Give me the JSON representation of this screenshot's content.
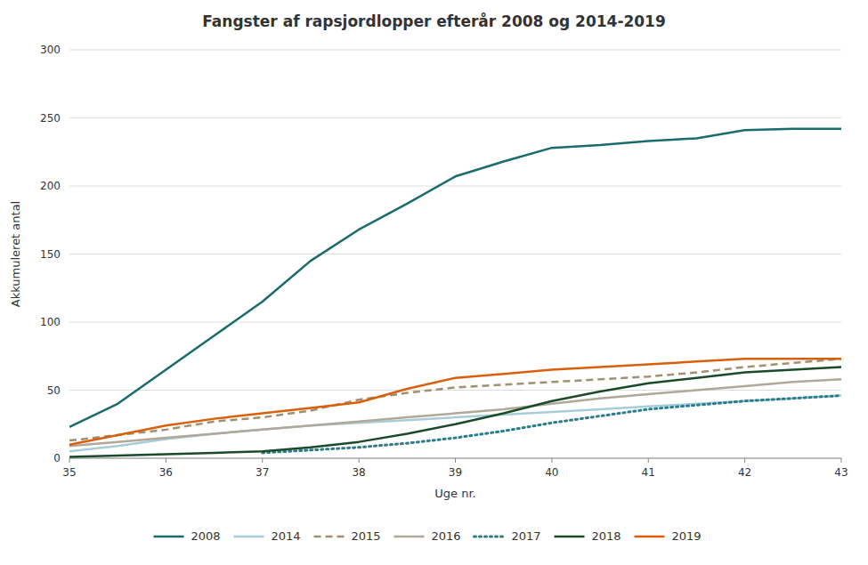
{
  "chart_data": {
    "type": "line",
    "title": "Fangster af rapsjordlopper efterår 2008 og 2014-2019",
    "xlabel": "Uge nr.",
    "ylabel": "Akkumuleret antal",
    "x": [
      35,
      35.5,
      36,
      36.5,
      37,
      37.5,
      38,
      38.5,
      39,
      39.5,
      40,
      40.5,
      41,
      41.5,
      42,
      42.5,
      43
    ],
    "series": [
      {
        "name": "2008",
        "color": "#1a6b6b",
        "line_style": "solid",
        "values": [
          23,
          40,
          65,
          90,
          115,
          145,
          168,
          187,
          207,
          218,
          228,
          230,
          233,
          235,
          241,
          242,
          242
        ]
      },
      {
        "name": "2014",
        "color": "#a8cdd8",
        "line_style": "solid",
        "values": [
          5,
          9,
          14,
          18,
          21,
          24,
          26,
          28,
          30,
          32,
          34,
          36,
          38,
          40,
          42,
          44,
          46
        ]
      },
      {
        "name": "2015",
        "color": "#a09070",
        "line_style": "dashed",
        "values": [
          13,
          17,
          21,
          27,
          30,
          35,
          43,
          48,
          52,
          54,
          56,
          58,
          60,
          63,
          67,
          70,
          73
        ]
      },
      {
        "name": "2016",
        "color": "#b0a898",
        "line_style": "solid",
        "values": [
          9,
          12,
          15,
          18,
          21,
          24,
          27,
          30,
          33,
          36,
          40,
          44,
          47,
          50,
          53,
          56,
          58
        ]
      },
      {
        "name": "2017",
        "color": "#2a7d8c",
        "line_style": "dotted",
        "values": [
          null,
          null,
          null,
          null,
          4,
          6,
          8,
          11,
          15,
          20,
          26,
          31,
          36,
          39,
          42,
          44,
          46
        ]
      },
      {
        "name": "2018",
        "color": "#1a4a2a",
        "line_style": "solid",
        "values": [
          1,
          2,
          3,
          4,
          5,
          8,
          12,
          18,
          25,
          33,
          42,
          49,
          55,
          59,
          63,
          65,
          67
        ]
      },
      {
        "name": "2019",
        "color": "#d95f0a",
        "line_style": "solid",
        "values": [
          10,
          17,
          24,
          29,
          33,
          37,
          41,
          51,
          59,
          62,
          65,
          67,
          69,
          71,
          73,
          73,
          73
        ]
      }
    ],
    "xlim": [
      35,
      43
    ],
    "xticks": [
      35,
      36,
      37,
      38,
      39,
      40,
      41,
      42,
      43
    ],
    "ylim": [
      0,
      300
    ],
    "yticks": [
      0,
      50,
      100,
      150,
      200,
      250,
      300
    ],
    "grid": "y",
    "legend": "bottom"
  }
}
